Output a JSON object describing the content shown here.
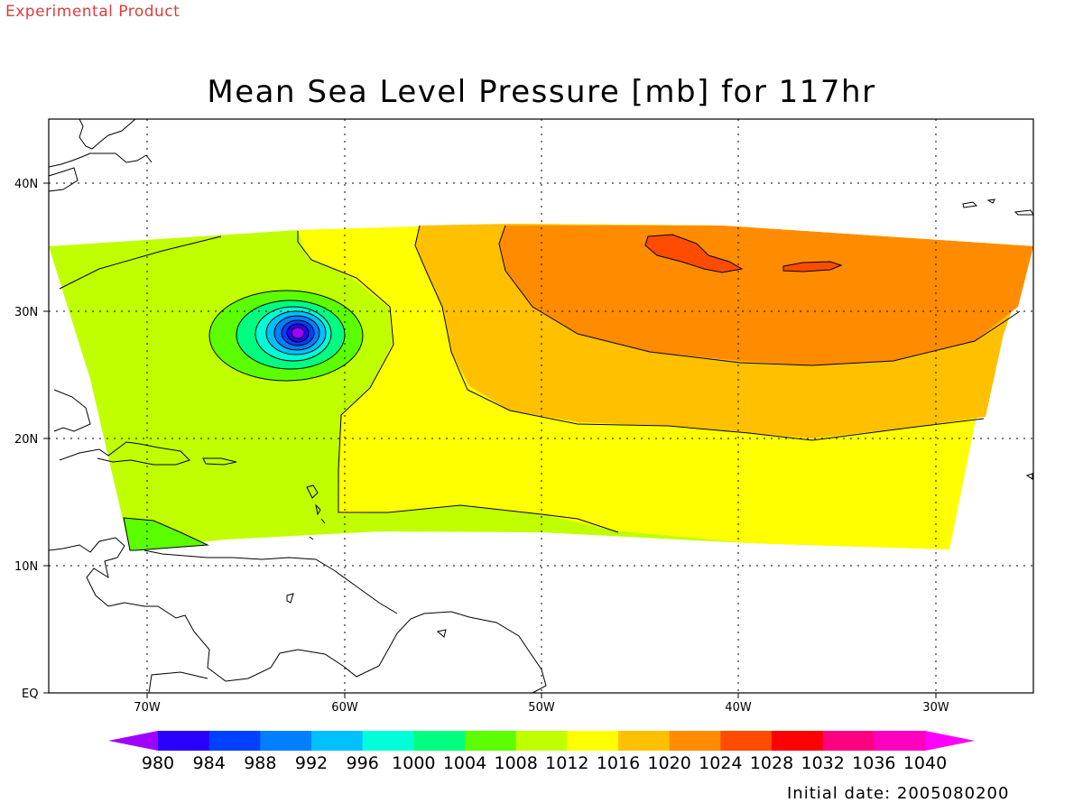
{
  "header": {
    "product_note": "Experimental Product",
    "product_note_color": "#e03c3c",
    "title": "Mean Sea Level Pressure [mb] for 117hr"
  },
  "footer": {
    "initial_date": "Initial date: 2005080200"
  },
  "axes": {
    "lat_labels": [
      "EQ",
      "10N",
      "20N",
      "30N",
      "40N"
    ],
    "lon_labels": [
      "70W",
      "60W",
      "50W",
      "40W",
      "30W"
    ]
  },
  "colorbar": {
    "labels": [
      "980",
      "984",
      "988",
      "992",
      "996",
      "1000",
      "1004",
      "1008",
      "1012",
      "1016",
      "1020",
      "1024",
      "1028",
      "1032",
      "1036",
      "1040"
    ],
    "colors": [
      "#a000ff",
      "#2a00ff",
      "#0040ff",
      "#0080ff",
      "#00c0ff",
      "#00ffd8",
      "#00ff80",
      "#5cff00",
      "#c0ff00",
      "#ffff00",
      "#ffc000",
      "#ff8c00",
      "#ff4c00",
      "#ff0000",
      "#ff0080",
      "#ff00c0",
      "#ff00ff"
    ]
  }
}
